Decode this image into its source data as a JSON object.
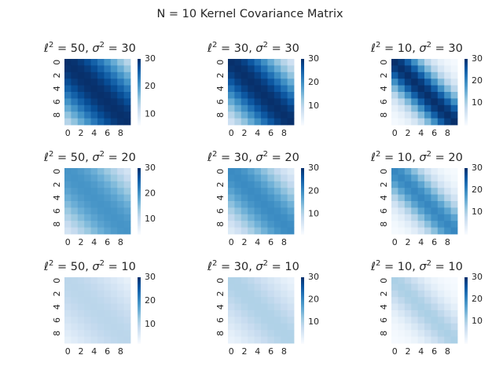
{
  "figure": {
    "title": "N = 10 Kernel Covariance Matrix"
  },
  "chart_data": {
    "type": "heatmap",
    "n": 10,
    "kernel": "squared-exponential",
    "colormap": "Blues",
    "vmax": 30,
    "x_ticks": [
      "0",
      "2",
      "4",
      "6",
      "8"
    ],
    "y_ticks": [
      "0",
      "2",
      "4",
      "6",
      "8"
    ],
    "panels": [
      {
        "title_l2": "50",
        "title_s2": "30",
        "l2": 50,
        "s2": 30,
        "vmin": 6.1,
        "colorbar_ticks": [
          "30",
          "20",
          "10"
        ]
      },
      {
        "title_l2": "30",
        "title_s2": "30",
        "l2": 30,
        "s2": 30,
        "vmin": 1.9,
        "colorbar_ticks": [
          "30",
          "20",
          "10"
        ]
      },
      {
        "title_l2": "10",
        "title_s2": "30",
        "l2": 10,
        "s2": 30,
        "vmin": 0.0,
        "colorbar_ticks": [
          "30",
          "20",
          "10"
        ]
      },
      {
        "title_l2": "50",
        "title_s2": "20",
        "l2": 50,
        "s2": 20,
        "vmin": 4.1,
        "colorbar_ticks": [
          "30",
          "20",
          "10"
        ]
      },
      {
        "title_l2": "30",
        "title_s2": "20",
        "l2": 30,
        "s2": 20,
        "vmin": 1.3,
        "colorbar_ticks": [
          "30",
          "20",
          "10"
        ]
      },
      {
        "title_l2": "10",
        "title_s2": "20",
        "l2": 10,
        "s2": 20,
        "vmin": 0.0,
        "colorbar_ticks": [
          "30",
          "20",
          "10"
        ]
      },
      {
        "title_l2": "50",
        "title_s2": "10",
        "l2": 50,
        "s2": 10,
        "vmin": 2.0,
        "colorbar_ticks": [
          "30",
          "20",
          "10"
        ]
      },
      {
        "title_l2": "30",
        "title_s2": "10",
        "l2": 30,
        "s2": 10,
        "vmin": 0.6,
        "colorbar_ticks": [
          "30",
          "20",
          "10"
        ]
      },
      {
        "title_l2": "10",
        "title_s2": "10",
        "l2": 10,
        "s2": 10,
        "vmin": 0.0,
        "colorbar_ticks": [
          "30",
          "20",
          "10"
        ]
      }
    ]
  }
}
